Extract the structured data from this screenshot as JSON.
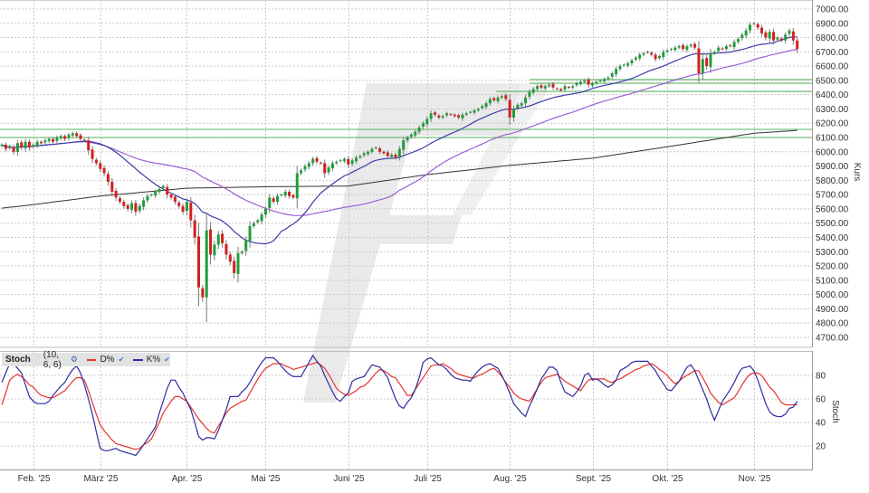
{
  "chart_data": [
    {
      "type": "candlestick",
      "panel": "price",
      "ylabel": "Kurs",
      "ylim": [
        4640,
        7030
      ],
      "yticks": [
        "7000.00",
        "6900.00",
        "6800.00",
        "6700.00",
        "6600.00",
        "6500.00",
        "6400.00",
        "6300.00",
        "6200.00",
        "6100.00",
        "6000.00",
        "5900.00",
        "5800.00",
        "5700.00",
        "5600.00",
        "5500.00",
        "5400.00",
        "5300.00",
        "5200.00",
        "5100.00",
        "5000.00",
        "4900.00",
        "4800.00",
        "4700.00"
      ],
      "grid": true,
      "colors": {
        "up": "#1f9d3c",
        "down": "#d41f1f",
        "wick": "#7a7a7a",
        "sma20": "#3b3ba8",
        "sma50": "#9b5fd6",
        "sma200": "#333333",
        "levels": "#4caf50"
      },
      "closes_by_month": {
        "2025-01": [
          6050,
          6020,
          6040,
          6000,
          6060,
          6030,
          6070,
          6030
        ],
        "2025-02": [
          6050,
          6070,
          6060,
          6080,
          6090,
          6070,
          6100,
          6110,
          6090,
          6120,
          6130,
          6110,
          6090,
          6080,
          6010,
          5950,
          5920
        ],
        "2025-03": [
          5880,
          5850,
          5790,
          5720,
          5680,
          5650,
          5620,
          5600,
          5640,
          5580,
          5620,
          5660,
          5690,
          5700,
          5720,
          5740,
          5760,
          5700,
          5680,
          5650,
          5620,
          5580
        ],
        "2025-04": [
          5650,
          5520,
          5400,
          5050,
          4980,
          5450,
          5280,
          5350,
          5420,
          5360,
          5280,
          5230,
          5150,
          5290,
          5300,
          5380,
          5480,
          5500,
          5520,
          5560
        ],
        "2025-05": [
          5600,
          5680,
          5650,
          5690,
          5700,
          5720,
          5690,
          5680,
          5850,
          5870,
          5900,
          5920,
          5950,
          5930,
          5920,
          5850,
          5890,
          5920,
          5930,
          5940,
          5950
        ],
        "2025-06": [
          5910,
          5940,
          5960,
          5970,
          5990,
          6000,
          6020,
          6030,
          6000,
          5990,
          5970,
          5980,
          5960,
          6020,
          6080,
          6100,
          6120,
          6140,
          6170,
          6200
        ],
        "2025-07": [
          6230,
          6270,
          6260,
          6240,
          6250,
          6270,
          6260,
          6250,
          6240,
          6260,
          6270,
          6280,
          6290,
          6300,
          6320,
          6340,
          6370,
          6360,
          6380,
          6390,
          6370
        ],
        "2025-08": [
          6240,
          6300,
          6330,
          6340,
          6380,
          6420,
          6440,
          6460,
          6450,
          6460,
          6470,
          6450,
          6440,
          6430,
          6460,
          6450,
          6460,
          6480,
          6490,
          6500,
          6470
        ],
        "2025-09": [
          6480,
          6490,
          6500,
          6510,
          6520,
          6550,
          6580,
          6600,
          6610,
          6620,
          6640,
          6660,
          6680,
          6690,
          6700,
          6680,
          6650,
          6670,
          6700
        ],
        "2025-10": [
          6710,
          6720,
          6730,
          6740,
          6720,
          6740,
          6750,
          6730,
          6550,
          6650,
          6600,
          6690,
          6700,
          6730,
          6720,
          6740,
          6740,
          6770,
          6790,
          6820,
          6850,
          6890
        ],
        "2025-11": [
          6900,
          6870,
          6830,
          6800,
          6840,
          6780,
          6800,
          6780,
          6820,
          6850,
          6780,
          6720
        ]
      },
      "sma_periods": [
        20,
        50
      ],
      "sma200_month_start": {
        "2025-01": 5605,
        "2025-02": 5630,
        "2025-03": 5690,
        "2025-04": 5745,
        "2025-05": 5755,
        "2025-06": 5760,
        "2025-07": 5840,
        "2025-08": 5905,
        "2025-09": 5955,
        "2025-10": 6035,
        "2025-11": 6130
      },
      "sma200_last": 6150,
      "levels": [
        {
          "value": 6506,
          "from": "2025-08"
        },
        {
          "value": 6480,
          "from": "2025-08"
        },
        {
          "value": 6423,
          "from": "2025-08"
        },
        {
          "value": 6157,
          "from": "2025-01"
        },
        {
          "value": 6100,
          "from": "2025-01"
        }
      ]
    },
    {
      "type": "line",
      "panel": "stochastic",
      "title": "Stoch",
      "params": "(10, 6, 6)",
      "ylabel": "Stoch",
      "ylim": [
        0,
        100
      ],
      "yticks": [
        "80",
        "60",
        "40",
        "20"
      ],
      "grid": true,
      "series": [
        {
          "name": "D%",
          "color": "#e8322e",
          "by_month": {
            "2025-01": [
              55,
              65,
              76,
              79,
              81,
              79,
              76,
              72
            ],
            "2025-02": [
              70,
              66,
              63,
              62,
              61,
              61,
              63,
              65,
              67,
              71,
              75,
              78,
              78,
              76,
              67,
              57,
              47
            ],
            "2025-03": [
              38,
              33,
              29,
              25,
              22,
              21,
              20,
              19,
              18,
              17,
              18,
              21,
              23,
              26,
              33,
              40,
              48,
              53,
              58,
              62,
              62,
              60
            ],
            "2025-04": [
              58,
              53,
              48,
              43,
              39,
              35,
              32,
              31,
              37,
              42,
              48,
              52,
              54,
              56,
              58,
              59,
              65,
              71,
              77,
              82
            ],
            "2025-05": [
              86,
              88,
              90,
              90,
              90,
              88,
              87,
              85,
              86,
              87,
              88,
              89,
              90,
              91,
              89,
              86,
              81,
              75,
              69,
              66,
              64
            ],
            "2025-06": [
              63,
              65,
              67,
              70,
              71,
              74,
              78,
              82,
              85,
              84,
              82,
              79,
              78,
              73,
              68,
              63,
              63,
              68,
              73,
              78
            ],
            "2025-07": [
              83,
              88,
              89,
              89,
              90,
              88,
              86,
              83,
              81,
              80,
              79,
              78,
              78,
              80,
              81,
              83,
              85,
              86,
              83,
              79,
              74
            ],
            "2025-08": [
              70,
              65,
              62,
              60,
              59,
              58,
              63,
              69,
              74,
              78,
              79,
              80,
              81,
              78,
              75,
              73,
              71,
              69,
              67,
              72,
              76
            ],
            "2025-09": [
              77,
              77,
              77,
              77,
              75,
              74,
              76,
              77,
              79,
              81,
              83,
              85,
              86,
              88,
              89,
              90,
              88,
              85,
              83
            ],
            "2025-10": [
              80,
              76,
              73,
              75,
              78,
              80,
              82,
              84,
              84,
              78,
              72,
              65,
              61,
              57,
              55,
              57,
              59,
              61,
              66,
              72,
              77,
              81
            ],
            "2025-11": [
              82,
              82,
              80,
              75,
              70,
              67,
              62,
              57,
              55,
              55,
              55,
              55
            ]
          }
        },
        {
          "name": "K%",
          "color": "#2c2ca0",
          "by_month": {
            "2025-01": [
              74,
              82,
              90,
              90,
              86,
              82,
              72,
              62
            ],
            "2025-02": [
              58,
              56,
              56,
              56,
              58,
              63,
              67,
              71,
              74,
              80,
              85,
              88,
              82,
              72,
              60,
              47,
              32
            ],
            "2025-03": [
              18,
              16,
              16,
              17,
              18,
              16,
              15,
              14,
              13,
              12,
              16,
              21,
              26,
              31,
              36,
              48,
              58,
              69,
              76,
              76,
              70,
              65
            ],
            "2025-04": [
              58,
              51,
              40,
              28,
              25,
              27,
              27,
              26,
              33,
              42,
              51,
              62,
              62,
              62,
              66,
              69,
              74,
              80,
              86,
              91
            ],
            "2025-05": [
              95,
              95,
              95,
              92,
              88,
              84,
              81,
              79,
              79,
              79,
              85,
              91,
              97,
              92,
              88,
              80,
              73,
              66,
              60,
              58,
              62
            ],
            "2025-06": [
              65,
              75,
              77,
              78,
              79,
              84,
              89,
              88,
              87,
              83,
              78,
              69,
              60,
              54,
              52,
              57,
              61,
              68,
              78,
              91
            ],
            "2025-07": [
              94,
              95,
              92,
              89,
              88,
              85,
              81,
              78,
              77,
              76,
              76,
              75,
              80,
              84,
              87,
              89,
              90,
              88,
              86,
              80,
              73
            ],
            "2025-08": [
              65,
              56,
              52,
              48,
              45,
              54,
              61,
              69,
              77,
              82,
              87,
              87,
              84,
              74,
              66,
              64,
              62,
              66,
              71,
              80,
              82
            ],
            "2025-09": [
              76,
              77,
              75,
              72,
              70,
              72,
              76,
              84,
              86,
              88,
              91,
              92,
              92,
              92,
              92,
              88,
              84,
              78,
              73
            ],
            "2025-10": [
              68,
              67,
              71,
              75,
              81,
              87,
              89,
              84,
              76,
              68,
              60,
              50,
              42,
              50,
              58,
              63,
              68,
              74,
              81,
              86,
              87,
              88
            ],
            "2025-11": [
              84,
              76,
              66,
              56,
              49,
              46,
              45,
              45,
              47,
              52,
              53,
              58
            ]
          }
        }
      ]
    }
  ],
  "xaxis": {
    "month_labels": {
      "2025-02": "Feb. '25",
      "2025-03": "März '25",
      "2025-04": "Apr. '25",
      "2025-05": "Mai '25",
      "2025-06": "Juni '25",
      "2025-07": "Juli '25",
      "2025-08": "Aug. '25",
      "2025-09": "Sept. '25",
      "2025-10": "Okt. '25",
      "2025-11": "Nov. '25"
    }
  },
  "legend": {
    "title": "Stoch",
    "params": "(10, 6, 6)",
    "settings_icon": "gear-icon",
    "items": [
      {
        "label": "D%",
        "color": "#e8322e",
        "icon": "check-icon"
      },
      {
        "label": "K%",
        "color": "#2c2ca0",
        "icon": "check-icon"
      }
    ]
  }
}
